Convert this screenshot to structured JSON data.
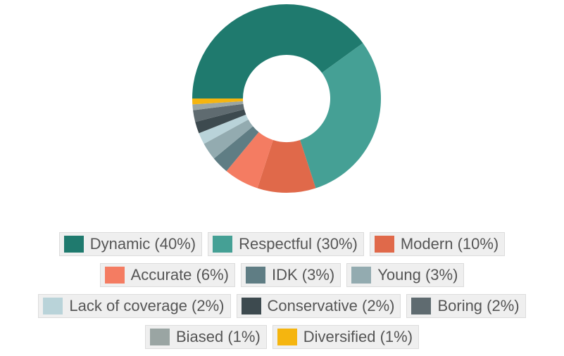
{
  "chart_data": {
    "type": "pie",
    "categories": [
      "Dynamic (40%)",
      "Respectful (30%)",
      "Modern (10%)",
      "Accurate (6%)",
      "IDK (3%)",
      "Young (3%)",
      "Lack of coverage (2%)",
      "Conservative (2%)",
      "Boring (2%)",
      "Biased (1%)",
      "Diversified (1%)"
    ],
    "values": [
      40,
      30,
      10,
      6,
      3,
      3,
      2,
      2,
      2,
      1,
      1
    ],
    "colors": [
      "#1f7a6e",
      "#45a095",
      "#e0694a",
      "#f47c62",
      "#5f7d84",
      "#93abb0",
      "#b9d3d9",
      "#3d4a4f",
      "#5f6b70",
      "#9aa5a3",
      "#f5b50f"
    ]
  }
}
